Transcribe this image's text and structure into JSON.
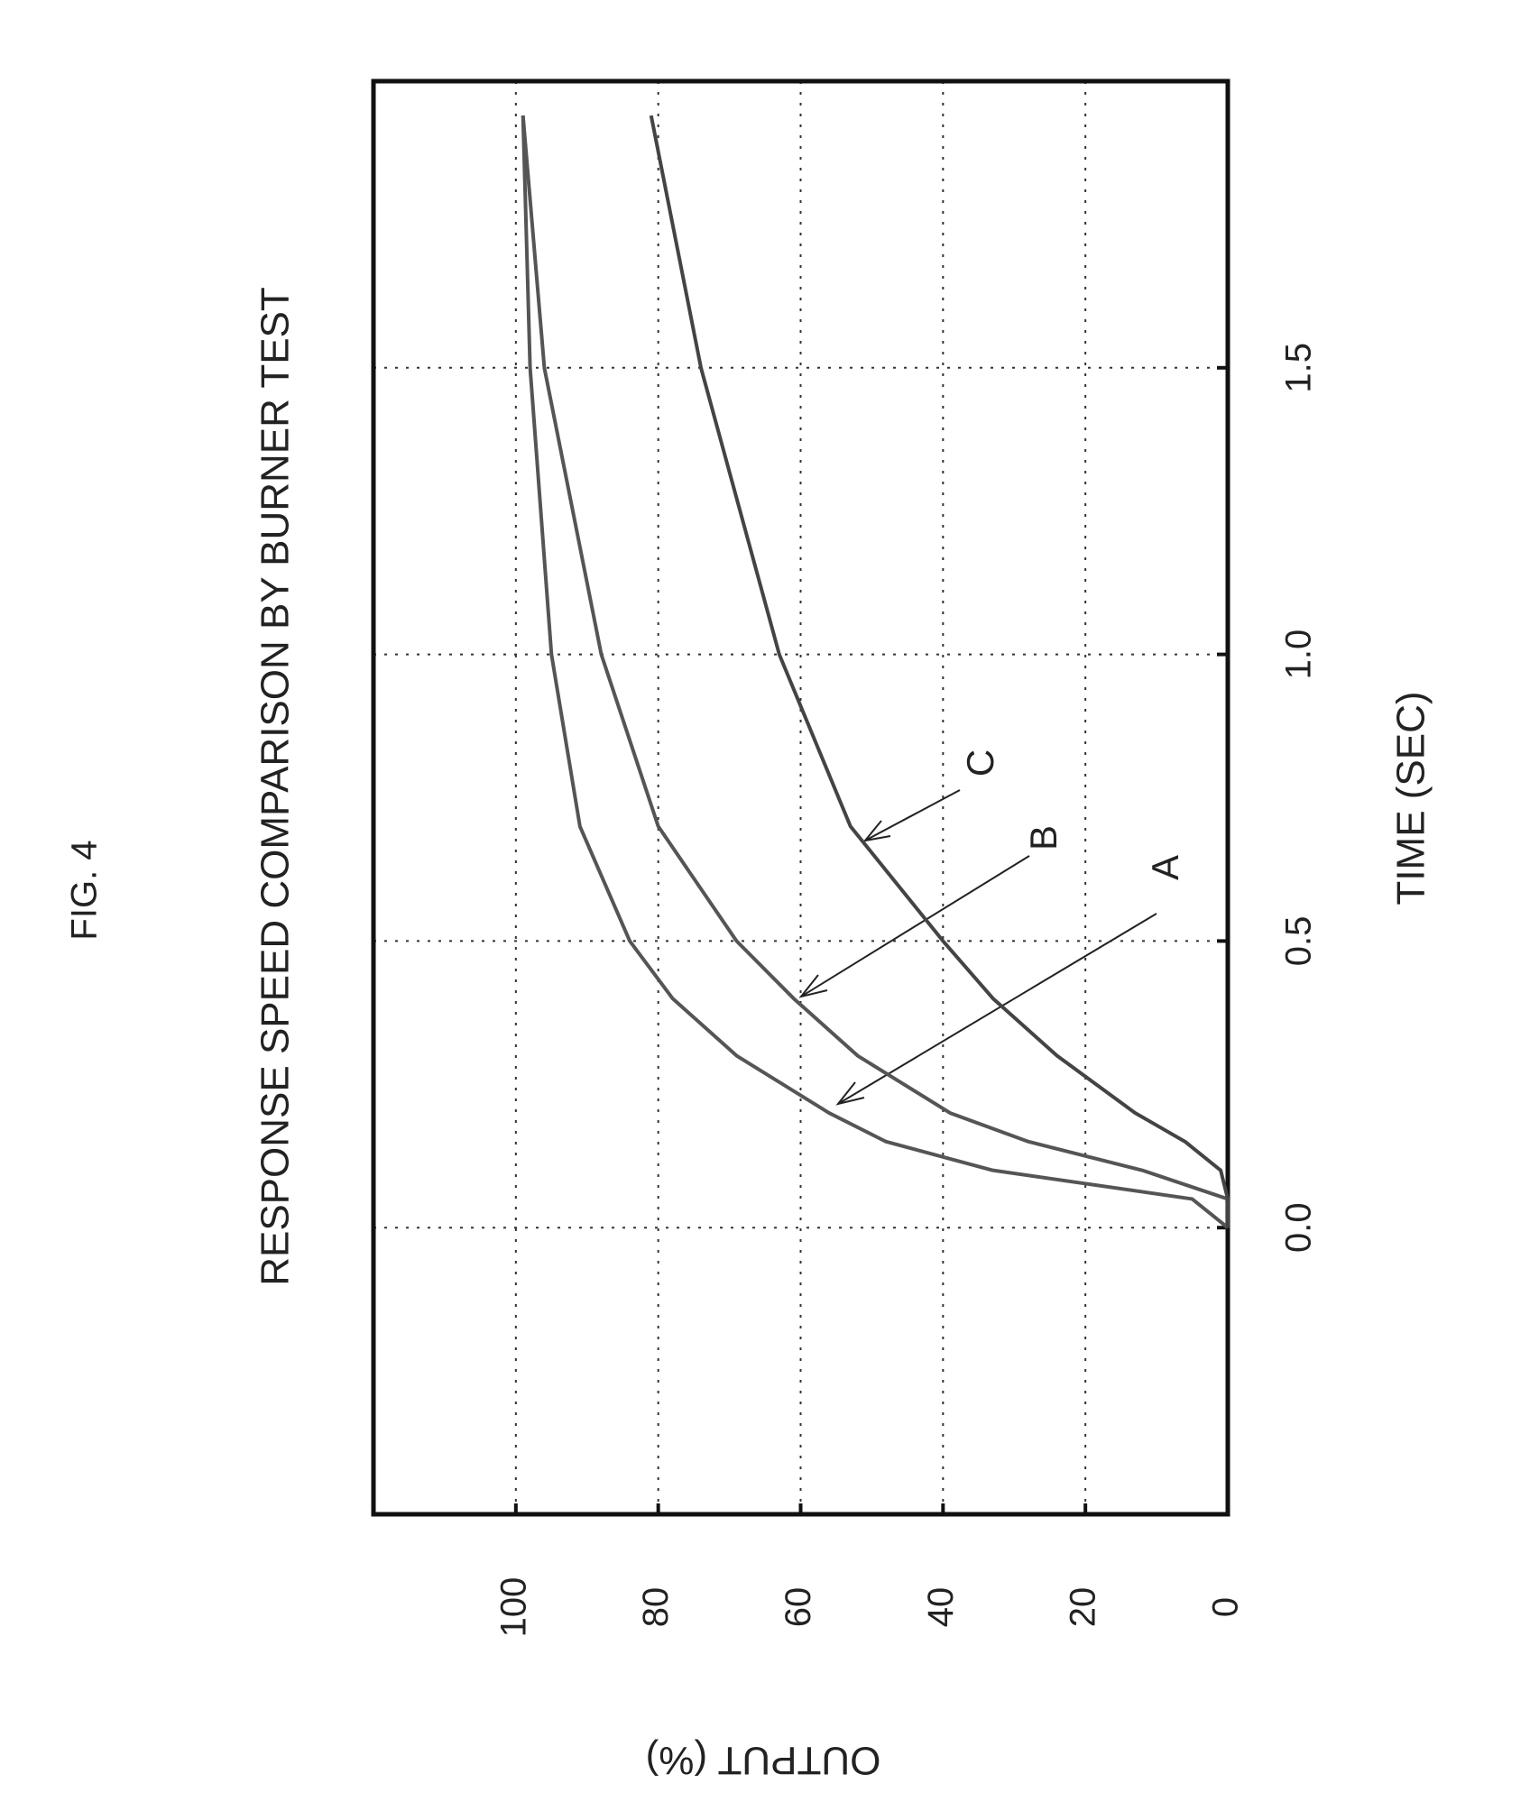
{
  "figure_label": "FIG. 4",
  "chart_data": {
    "type": "line",
    "title": "RESPONSE SPEED COMPARISON BY BURNER TEST",
    "x_label": "TIME (SEC)",
    "y_label": "OUTPUT (%)",
    "x": [
      0,
      0.05,
      0.1,
      0.15,
      0.2,
      0.3,
      0.4,
      0.5,
      0.7,
      1.0,
      1.5,
      1.94
    ],
    "series": [
      {
        "name": "A",
        "color": "#555555",
        "values": [
          0,
          5,
          33,
          48,
          56,
          69,
          78,
          84,
          91,
          95,
          98,
          99
        ]
      },
      {
        "name": "B",
        "color": "#555555",
        "values": [
          0,
          0,
          12,
          28,
          39,
          52,
          61,
          69,
          80,
          88,
          96,
          99
        ]
      },
      {
        "name": "C",
        "color": "#444444",
        "values": [
          0,
          0,
          1,
          6,
          13,
          24,
          33,
          40,
          53,
          63,
          74,
          81
        ]
      }
    ],
    "xlim": [
      -0.5,
      2.0
    ],
    "xticks": [
      {
        "value": 0,
        "label": "0.0"
      },
      0.5,
      {
        "value": 1,
        "label": "1.0"
      },
      1.5
    ],
    "ylim": [
      0,
      120
    ],
    "yticks": [
      0,
      20,
      40,
      60,
      80,
      100
    ],
    "grid": true
  }
}
